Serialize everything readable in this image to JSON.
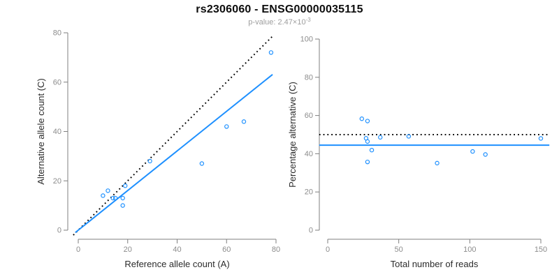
{
  "header": {
    "title": "rs2306060 - ENSG00000035115",
    "subtitle_label": "p-value: ",
    "subtitle_value": "2.47×10",
    "subtitle_exponent": "-3"
  },
  "colors": {
    "accent_blue": "#1E90FF",
    "dotted_black": "#000000",
    "axis_line_gray": "#7f7f7f",
    "tick_label_gray": "#8c8c8c",
    "axis_label_dark": "#2b2b2b"
  },
  "chart_data": [
    {
      "type": "scatter",
      "name": "allele-counts-scatter",
      "title": "",
      "xlabel": "Reference allele count (A)",
      "ylabel": "Alternative allele count (C)",
      "xlim": [
        0,
        80
      ],
      "ylim": [
        0,
        80
      ],
      "xticks": [
        0,
        20,
        40,
        60,
        80
      ],
      "yticks": [
        0,
        20,
        40,
        60,
        80
      ],
      "grid": false,
      "legend": false,
      "points": [
        [
          10,
          14
        ],
        [
          12,
          16
        ],
        [
          14,
          13
        ],
        [
          15,
          13
        ],
        [
          18,
          10
        ],
        [
          18,
          13
        ],
        [
          19,
          18
        ],
        [
          29,
          28
        ],
        [
          50,
          27
        ],
        [
          60,
          42
        ],
        [
          67,
          44
        ],
        [
          78,
          72
        ]
      ],
      "lines": [
        {
          "name": "identity-line",
          "style": "dotted",
          "color": "#000000",
          "x1": -2,
          "y1": -2,
          "x2": 78.5,
          "y2": 78.5
        },
        {
          "name": "regression-line",
          "style": "solid",
          "color": "#1E90FF",
          "x1": -1.2,
          "y1": -0.95,
          "x2": 78.6,
          "y2": 63.1
        }
      ]
    },
    {
      "type": "scatter",
      "name": "percentage-vs-reads-scatter",
      "title": "",
      "xlabel": "Total number of reads",
      "ylabel": "Percentage alternative (C)",
      "xlim": [
        0,
        150
      ],
      "ylim": [
        0,
        100
      ],
      "xticks": [
        0,
        50,
        100,
        150
      ],
      "yticks": [
        0,
        20,
        40,
        60,
        80,
        100
      ],
      "grid": false,
      "legend": false,
      "points": [
        [
          24,
          58.3
        ],
        [
          28,
          57.1
        ],
        [
          27,
          48.1
        ],
        [
          28,
          46.4
        ],
        [
          28,
          35.7
        ],
        [
          31,
          41.9
        ],
        [
          37,
          48.6
        ],
        [
          57,
          49.1
        ],
        [
          77,
          35.1
        ],
        [
          102,
          41.2
        ],
        [
          111,
          39.6
        ],
        [
          150,
          48.0
        ]
      ],
      "lines": [
        {
          "name": "expected-50-percent-line",
          "style": "dotted",
          "color": "#000000",
          "x1": -6,
          "y1": 50,
          "x2": 156,
          "y2": 50
        },
        {
          "name": "mean-percentage-line",
          "style": "solid",
          "color": "#1E90FF",
          "x1": -6,
          "y1": 44.5,
          "x2": 156,
          "y2": 44.5
        }
      ]
    }
  ]
}
